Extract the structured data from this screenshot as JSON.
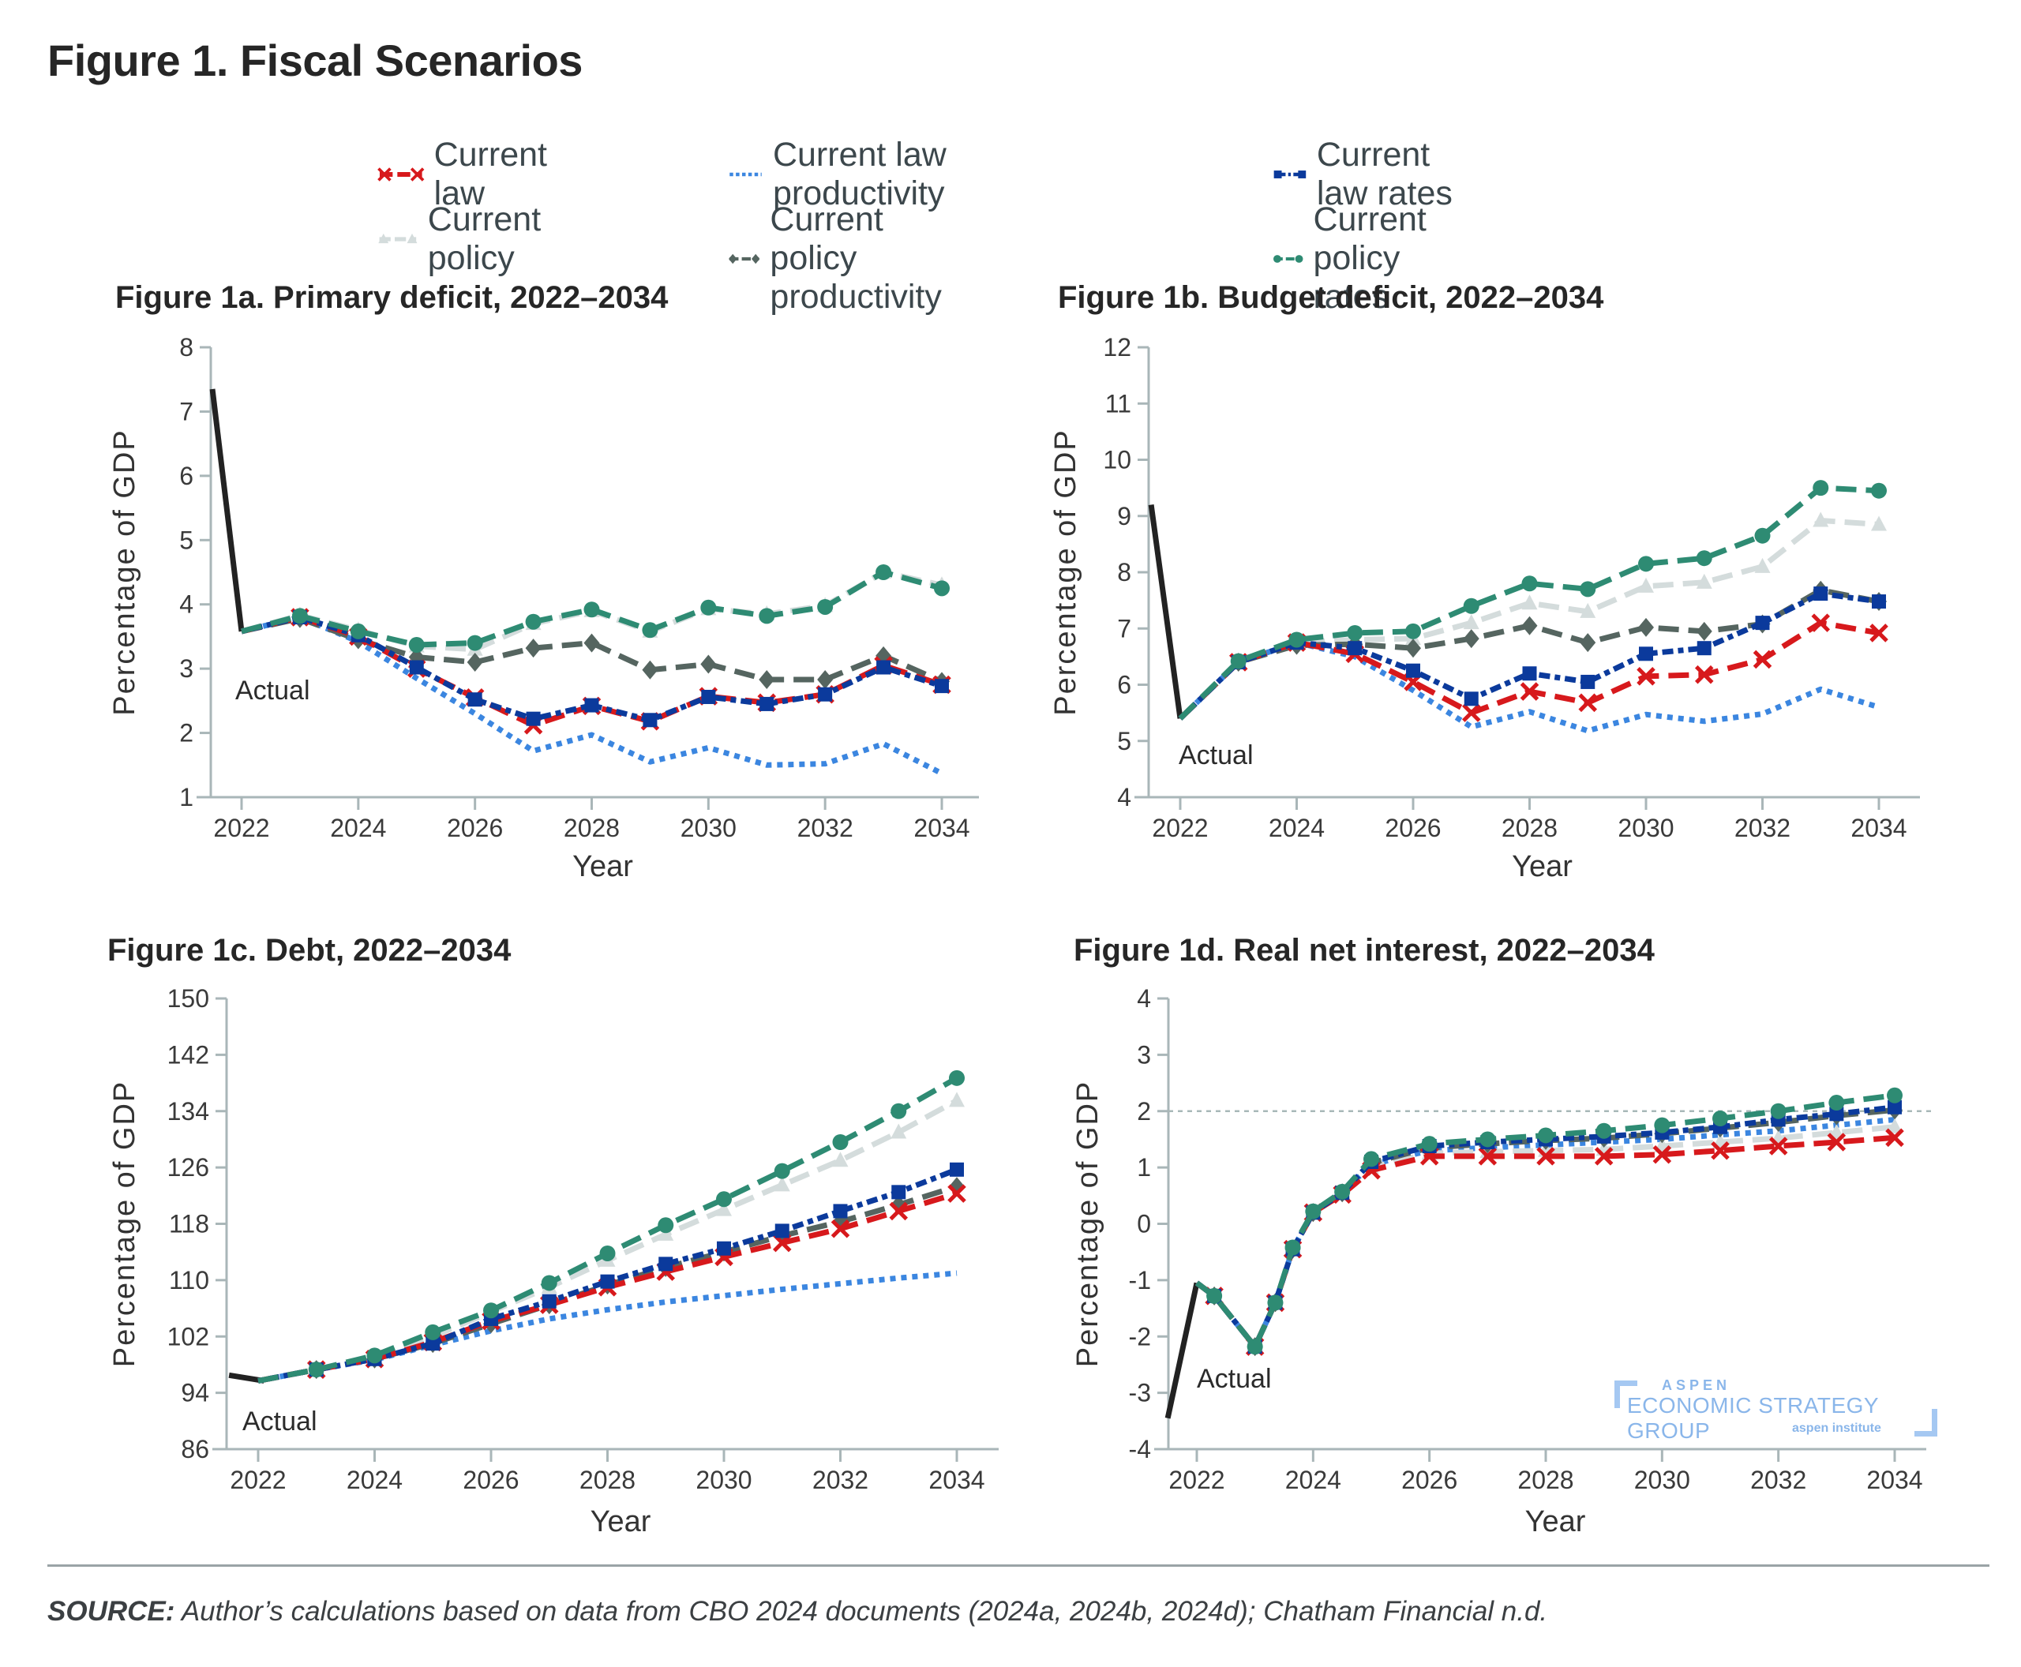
{
  "title": "Figure 1. Fiscal Scenarios",
  "legend": [
    {
      "key": "current_law",
      "label": "Current law",
      "color": "#d7191c",
      "dash": "dash",
      "marker": "x"
    },
    {
      "key": "current_law_productivity",
      "label": "Current law productivity",
      "color": "#3b86e0",
      "dash": "dot",
      "marker": "none"
    },
    {
      "key": "current_law_rates",
      "label": "Current law rates",
      "color": "#0b3a9c",
      "dash": "dashdot",
      "marker": "square"
    },
    {
      "key": "current_policy",
      "label": "Current policy",
      "color": "#d4dcdc",
      "dash": "dash",
      "marker": "triangle"
    },
    {
      "key": "current_policy_productivity",
      "label": "Current policy productivity",
      "color": "#556560",
      "dash": "dash",
      "marker": "diamond"
    },
    {
      "key": "current_policy_rates",
      "label": "Current policy rates",
      "color": "#2e8b73",
      "dash": "dash",
      "marker": "circle"
    }
  ],
  "actual_color": "#222222",
  "source": {
    "prefix": "SOURCE:",
    "text": " Author’s calculations based on data from CBO 2024 documents (2024a, 2024b, 2024d); Chatham Financial n.d."
  },
  "watermark": {
    "line1": "ASPEN",
    "line2": "ECONOMIC STRATEGY GROUP",
    "line3": "aspen institute"
  },
  "chart_data": [
    {
      "type": "line",
      "id": "fig1a",
      "title": "Figure 1a. Primary deficit, 2022–2034",
      "xlabel": "Year",
      "ylabel": "Percentage of GDP",
      "xlim": [
        2021.5,
        2035.1
      ],
      "ylim": [
        1,
        8
      ],
      "yticks": [
        1,
        2,
        3,
        4,
        5,
        6,
        7,
        8
      ],
      "xticks": [
        2022,
        2024,
        2026,
        2028,
        2030,
        2032,
        2034
      ],
      "annotation": "Actual",
      "reference_line": null,
      "actual": {
        "x": [
          2021.5,
          2022
        ],
        "y": [
          7.35,
          3.58
        ]
      },
      "series": [
        {
          "key": "current_law_productivity",
          "x": [
            2022,
            2023,
            2024,
            2025,
            2026,
            2027,
            2028,
            2029,
            2030,
            2031,
            2032,
            2033,
            2034
          ],
          "y": [
            3.58,
            3.8,
            3.42,
            2.85,
            2.3,
            1.72,
            1.97,
            1.55,
            1.77,
            1.5,
            1.52,
            1.83,
            1.37
          ]
        },
        {
          "key": "current_policy",
          "x": [
            2022,
            2023,
            2024,
            2025,
            2026,
            2027,
            2028,
            2029,
            2030,
            2031,
            2032,
            2033,
            2034
          ],
          "y": [
            3.58,
            3.83,
            3.6,
            3.35,
            3.3,
            3.7,
            3.9,
            3.58,
            3.93,
            3.85,
            3.98,
            4.5,
            4.3
          ]
        },
        {
          "key": "current_policy_productivity",
          "x": [
            2022,
            2023,
            2024,
            2025,
            2026,
            2027,
            2028,
            2029,
            2030,
            2031,
            2032,
            2033,
            2034
          ],
          "y": [
            3.58,
            3.78,
            3.45,
            3.18,
            3.1,
            3.32,
            3.4,
            2.98,
            3.07,
            2.83,
            2.83,
            3.2,
            2.8
          ]
        },
        {
          "key": "current_law",
          "x": [
            2022,
            2023,
            2024,
            2025,
            2026,
            2027,
            2028,
            2029,
            2030,
            2031,
            2032,
            2033,
            2034
          ],
          "y": [
            3.58,
            3.8,
            3.5,
            3.0,
            2.55,
            2.12,
            2.42,
            2.18,
            2.57,
            2.47,
            2.6,
            3.05,
            2.75
          ]
        },
        {
          "key": "current_law_rates",
          "x": [
            2022,
            2023,
            2024,
            2025,
            2026,
            2027,
            2028,
            2029,
            2030,
            2031,
            2032,
            2033,
            2034
          ],
          "y": [
            3.58,
            3.8,
            3.52,
            3.02,
            2.52,
            2.22,
            2.43,
            2.2,
            2.56,
            2.45,
            2.6,
            3.02,
            2.73
          ]
        },
        {
          "key": "current_policy_rates",
          "x": [
            2022,
            2023,
            2024,
            2025,
            2026,
            2027,
            2028,
            2029,
            2030,
            2031,
            2032,
            2033,
            2034
          ],
          "y": [
            3.58,
            3.82,
            3.58,
            3.37,
            3.4,
            3.73,
            3.92,
            3.6,
            3.95,
            3.82,
            3.96,
            4.5,
            4.25
          ]
        }
      ]
    },
    {
      "type": "line",
      "id": "fig1b",
      "title": "Figure 1b. Budget deficit, 2022–2034",
      "xlabel": "Year",
      "ylabel": "Percentage of GDP",
      "xlim": [
        2021.5,
        2035.1
      ],
      "ylim": [
        4,
        12
      ],
      "yticks": [
        4,
        5,
        6,
        7,
        8,
        9,
        10,
        11,
        12
      ],
      "xticks": [
        2022,
        2024,
        2026,
        2028,
        2030,
        2032,
        2034
      ],
      "annotation": "Actual",
      "reference_line": null,
      "actual": {
        "x": [
          2021.5,
          2022
        ],
        "y": [
          9.2,
          5.4
        ]
      },
      "series": [
        {
          "key": "current_law_productivity",
          "x": [
            2022,
            2023,
            2024,
            2025,
            2026,
            2027,
            2028,
            2029,
            2030,
            2031,
            2032,
            2033,
            2034
          ],
          "y": [
            5.4,
            6.4,
            6.75,
            6.5,
            5.9,
            5.25,
            5.52,
            5.18,
            5.47,
            5.35,
            5.48,
            5.92,
            5.6
          ]
        },
        {
          "key": "current_policy",
          "x": [
            2022,
            2023,
            2024,
            2025,
            2026,
            2027,
            2028,
            2029,
            2030,
            2031,
            2032,
            2033,
            2034
          ],
          "y": [
            5.4,
            6.4,
            6.75,
            6.8,
            6.82,
            7.1,
            7.45,
            7.3,
            7.75,
            7.82,
            8.1,
            8.92,
            8.85
          ]
        },
        {
          "key": "current_policy_productivity",
          "x": [
            2022,
            2023,
            2024,
            2025,
            2026,
            2027,
            2028,
            2029,
            2030,
            2031,
            2032,
            2033,
            2034
          ],
          "y": [
            5.4,
            6.4,
            6.7,
            6.72,
            6.65,
            6.82,
            7.05,
            6.75,
            7.02,
            6.95,
            7.08,
            7.68,
            7.48
          ]
        },
        {
          "key": "current_law",
          "x": [
            2022,
            2023,
            2024,
            2025,
            2026,
            2027,
            2028,
            2029,
            2030,
            2031,
            2032,
            2033,
            2034
          ],
          "y": [
            5.4,
            6.4,
            6.75,
            6.55,
            6.05,
            5.5,
            5.88,
            5.68,
            6.15,
            6.18,
            6.45,
            7.1,
            6.92
          ]
        },
        {
          "key": "current_law_rates",
          "x": [
            2022,
            2023,
            2024,
            2025,
            2026,
            2027,
            2028,
            2029,
            2030,
            2031,
            2032,
            2033,
            2034
          ],
          "y": [
            5.4,
            6.4,
            6.75,
            6.65,
            6.25,
            5.75,
            6.2,
            6.05,
            6.55,
            6.65,
            7.1,
            7.62,
            7.48
          ]
        },
        {
          "key": "current_policy_rates",
          "x": [
            2022,
            2023,
            2024,
            2025,
            2026,
            2027,
            2028,
            2029,
            2030,
            2031,
            2032,
            2033,
            2034
          ],
          "y": [
            5.4,
            6.42,
            6.8,
            6.92,
            6.95,
            7.4,
            7.8,
            7.7,
            8.15,
            8.25,
            8.65,
            9.5,
            9.45
          ]
        }
      ]
    },
    {
      "type": "line",
      "id": "fig1c",
      "title": "Figure 1c. Debt, 2022–2034",
      "xlabel": "Year",
      "ylabel": "Percentage of GDP",
      "xlim": [
        2021.5,
        2035.4
      ],
      "ylim": [
        86,
        150
      ],
      "yticks": [
        86,
        94,
        102,
        110,
        118,
        126,
        134,
        142,
        150
      ],
      "xticks": [
        2022,
        2024,
        2026,
        2028,
        2030,
        2032,
        2034
      ],
      "annotation": "Actual",
      "reference_line": null,
      "actual": {
        "x": [
          2021.5,
          2022.1
        ],
        "y": [
          96.5,
          95.7
        ]
      },
      "series": [
        {
          "key": "current_law_productivity",
          "x": [
            2022,
            2023,
            2024,
            2025,
            2026,
            2027,
            2028,
            2029,
            2030,
            2031,
            2032,
            2033,
            2034
          ],
          "y": [
            95.7,
            97.3,
            98.7,
            100.8,
            102.8,
            104.5,
            105.8,
            106.9,
            107.8,
            108.7,
            109.5,
            110.3,
            111.0
          ]
        },
        {
          "key": "current_policy",
          "x": [
            2022,
            2023,
            2024,
            2025,
            2026,
            2027,
            2028,
            2029,
            2030,
            2031,
            2032,
            2033,
            2034
          ],
          "y": [
            95.7,
            97.3,
            99.0,
            102.0,
            105.5,
            109.0,
            112.8,
            116.5,
            120.0,
            123.5,
            127.0,
            131.0,
            135.5
          ]
        },
        {
          "key": "current_policy_productivity",
          "x": [
            2022,
            2023,
            2024,
            2025,
            2026,
            2027,
            2028,
            2029,
            2030,
            2031,
            2032,
            2033,
            2034
          ],
          "y": [
            95.7,
            97.3,
            98.8,
            101.0,
            103.8,
            106.5,
            109.3,
            111.8,
            114.0,
            116.3,
            118.3,
            120.7,
            123.3
          ]
        },
        {
          "key": "current_law",
          "x": [
            2022,
            2023,
            2024,
            2025,
            2026,
            2027,
            2028,
            2029,
            2030,
            2031,
            2032,
            2033,
            2034
          ],
          "y": [
            95.7,
            97.3,
            98.8,
            101.2,
            104.2,
            106.5,
            109.0,
            111.2,
            113.3,
            115.3,
            117.3,
            119.8,
            122.3
          ]
        },
        {
          "key": "current_law_rates",
          "x": [
            2022,
            2023,
            2024,
            2025,
            2026,
            2027,
            2028,
            2029,
            2030,
            2031,
            2032,
            2033,
            2034
          ],
          "y": [
            95.7,
            97.3,
            98.8,
            101.0,
            104.5,
            107.0,
            109.8,
            112.3,
            114.5,
            117.0,
            119.8,
            122.5,
            125.7
          ]
        },
        {
          "key": "current_policy_rates",
          "x": [
            2022,
            2023,
            2024,
            2025,
            2026,
            2027,
            2028,
            2029,
            2030,
            2031,
            2032,
            2033,
            2034
          ],
          "y": [
            95.7,
            97.3,
            99.3,
            102.6,
            105.7,
            109.6,
            113.8,
            117.8,
            121.5,
            125.5,
            129.6,
            134.0,
            138.7
          ]
        }
      ]
    },
    {
      "type": "line",
      "id": "fig1d",
      "title": "Figure 1d. Real net interest, 2022–2034",
      "xlabel": "Year",
      "ylabel": "Percentage of GDP",
      "xlim": [
        2021.5,
        2035.1
      ],
      "ylim": [
        -4,
        4
      ],
      "yticks": [
        -4,
        -3,
        -2,
        -1,
        0,
        1,
        2,
        3,
        4
      ],
      "xticks": [
        2022,
        2024,
        2026,
        2028,
        2030,
        2032,
        2034
      ],
      "annotation": "Actual",
      "reference_line": {
        "y": 2,
        "style": "dotted"
      },
      "actual": {
        "x": [
          2021.5,
          2022
        ],
        "y": [
          -3.45,
          -1.05
        ]
      },
      "series": [
        {
          "key": "current_law_productivity",
          "x": [
            2022,
            2022.3,
            2023,
            2023.35,
            2023.65,
            2024,
            2024.5,
            2025,
            2026,
            2027,
            2028,
            2029,
            2030,
            2031,
            2032,
            2033,
            2034
          ],
          "y": [
            -1.05,
            -1.28,
            -2.18,
            -1.4,
            -0.45,
            0.2,
            0.55,
            1.05,
            1.3,
            1.35,
            1.4,
            1.45,
            1.5,
            1.58,
            1.65,
            1.75,
            1.85
          ]
        },
        {
          "key": "current_policy",
          "x": [
            2022,
            2022.3,
            2023,
            2023.35,
            2023.65,
            2024,
            2024.5,
            2025,
            2026,
            2027,
            2028,
            2029,
            2030,
            2031,
            2032,
            2033,
            2034
          ],
          "y": [
            -1.05,
            -1.28,
            -2.18,
            -1.4,
            -0.45,
            0.18,
            0.55,
            1.0,
            1.25,
            1.28,
            1.3,
            1.32,
            1.38,
            1.45,
            1.52,
            1.62,
            1.72
          ]
        },
        {
          "key": "current_policy_productivity",
          "x": [
            2022,
            2022.3,
            2023,
            2023.35,
            2023.65,
            2024,
            2024.5,
            2025,
            2026,
            2027,
            2028,
            2029,
            2030,
            2031,
            2032,
            2033,
            2034
          ],
          "y": [
            -1.05,
            -1.28,
            -2.18,
            -1.4,
            -0.45,
            0.2,
            0.55,
            1.08,
            1.35,
            1.42,
            1.48,
            1.52,
            1.6,
            1.7,
            1.8,
            1.92,
            2.02
          ]
        },
        {
          "key": "current_law",
          "x": [
            2022,
            2022.3,
            2023,
            2023.35,
            2023.65,
            2024,
            2024.5,
            2025,
            2026,
            2027,
            2028,
            2029,
            2030,
            2031,
            2032,
            2033,
            2034
          ],
          "y": [
            -1.05,
            -1.28,
            -2.18,
            -1.4,
            -0.45,
            0.2,
            0.52,
            0.95,
            1.2,
            1.2,
            1.2,
            1.2,
            1.23,
            1.3,
            1.38,
            1.45,
            1.53
          ]
        },
        {
          "key": "current_law_rates",
          "x": [
            2022,
            2022.3,
            2023,
            2023.35,
            2023.65,
            2024,
            2024.5,
            2025,
            2026,
            2027,
            2028,
            2029,
            2030,
            2031,
            2032,
            2033,
            2034
          ],
          "y": [
            -1.05,
            -1.28,
            -2.18,
            -1.4,
            -0.45,
            0.2,
            0.55,
            1.1,
            1.38,
            1.45,
            1.5,
            1.55,
            1.62,
            1.72,
            1.85,
            1.95,
            2.07
          ]
        },
        {
          "key": "current_policy_rates",
          "x": [
            2022,
            2022.3,
            2023,
            2023.35,
            2023.65,
            2024,
            2024.5,
            2025,
            2026,
            2027,
            2028,
            2029,
            2030,
            2031,
            2032,
            2033,
            2034
          ],
          "y": [
            -1.05,
            -1.28,
            -2.18,
            -1.4,
            -0.42,
            0.22,
            0.57,
            1.15,
            1.42,
            1.5,
            1.57,
            1.65,
            1.75,
            1.87,
            2.0,
            2.15,
            2.28
          ]
        }
      ]
    }
  ]
}
